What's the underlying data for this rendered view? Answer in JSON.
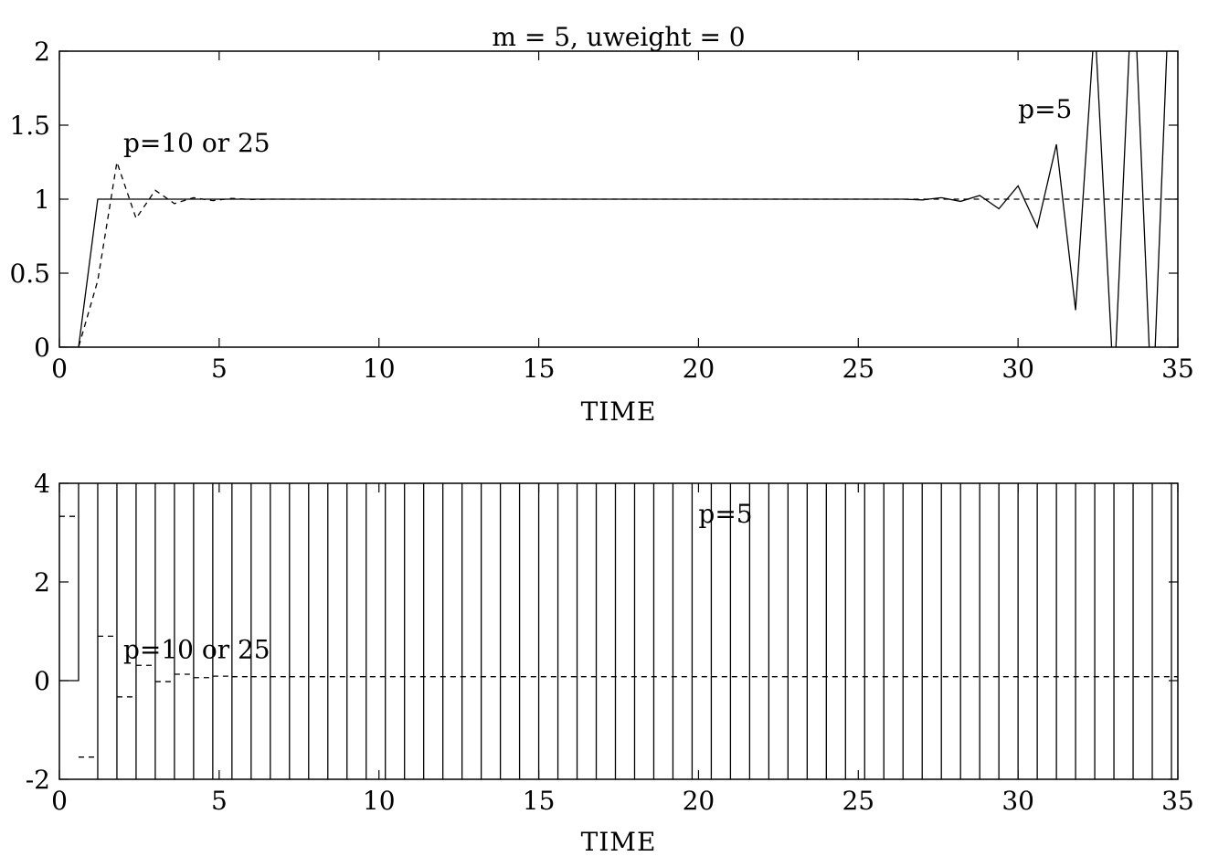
{
  "figure": {
    "title": "m = 5, uweight = 0"
  },
  "chart_data": [
    {
      "type": "line",
      "title": "m = 5, uweight = 0",
      "xlabel": "TIME",
      "ylabel": "",
      "xlim": [
        0,
        35
      ],
      "ylim": [
        0,
        2
      ],
      "xticks": [
        0,
        5,
        10,
        15,
        20,
        25,
        30,
        35
      ],
      "xtick_labels": [
        "0",
        "5",
        "10",
        "15",
        "20",
        "25",
        "30",
        "35"
      ],
      "yticks": [
        0,
        0.5,
        1,
        1.5,
        2
      ],
      "ytick_labels": [
        "0",
        "0.5",
        "1",
        "1.5",
        "2"
      ],
      "grid": false,
      "annotations": [
        {
          "text": "p=10 or 25",
          "x": 2.0,
          "y": 1.32
        },
        {
          "text": "p=5",
          "x": 30.0,
          "y": 1.55
        }
      ],
      "series": [
        {
          "style": "solid",
          "x": [
            0,
            0.6,
            1.2,
            1.8,
            2.4,
            3.0,
            3.6,
            4.2,
            4.8,
            5.4,
            6.0,
            7.0,
            10,
            15,
            20,
            25,
            26.4,
            27.0,
            27.6,
            28.2,
            28.8,
            29.4,
            30.0,
            30.6,
            31.2,
            31.8,
            32.4,
            33.0,
            33.6,
            34.2,
            34.8
          ],
          "y": [
            0,
            0,
            1,
            1,
            1,
            1,
            1,
            1,
            1,
            1,
            1,
            1,
            1,
            1,
            1,
            1,
            1,
            0.995,
            1.01,
            0.985,
            1.025,
            0.935,
            1.09,
            0.81,
            1.37,
            0.25,
            2.2,
            -0.3,
            2.6,
            -0.5,
            2.8
          ]
        },
        {
          "style": "dashed",
          "x": [
            0,
            0.6,
            1.2,
            1.8,
            2.4,
            3.0,
            3.6,
            4.2,
            4.8,
            5.4,
            6.0,
            6.6,
            7.2,
            35
          ],
          "y": [
            0,
            0,
            0.45,
            1.25,
            0.87,
            1.06,
            0.97,
            1.01,
            0.99,
            1.005,
            0.998,
            1.0,
            1.0,
            1.0
          ]
        }
      ]
    },
    {
      "type": "line",
      "xlabel": "TIME",
      "ylabel": "",
      "xlim": [
        0,
        35
      ],
      "ylim": [
        -2,
        4
      ],
      "xticks": [
        0,
        5,
        10,
        15,
        20,
        25,
        30,
        35
      ],
      "xtick_labels": [
        "0",
        "5",
        "10",
        "15",
        "20",
        "25",
        "30",
        "35"
      ],
      "yticks": [
        -2,
        0,
        2,
        4
      ],
      "ytick_labels": [
        "-2",
        "0",
        "2",
        "4"
      ],
      "grid": false,
      "annotations": [
        {
          "text": "p=5",
          "x": 20.0,
          "y": 3.2
        },
        {
          "text": "p=10 or 25",
          "x": 2.0,
          "y": 0.45
        }
      ],
      "series": [
        {
          "style": "solid-step",
          "step": 0.6,
          "x_start": 0.6,
          "x_end": 34.8,
          "low": -3,
          "high": 5,
          "first_high": 0.6
        },
        {
          "style": "dashed-step",
          "x": [
            0,
            0.6,
            1.2,
            1.8,
            2.4,
            3.0,
            3.6,
            4.2,
            4.8,
            5.4,
            6.0,
            6.6,
            7.2,
            35
          ],
          "y": [
            3.33,
            -1.55,
            0.9,
            -0.33,
            0.31,
            -0.02,
            0.13,
            0.06,
            0.09,
            0.08,
            0.08,
            0.08,
            0.08,
            0.08
          ]
        }
      ]
    }
  ]
}
